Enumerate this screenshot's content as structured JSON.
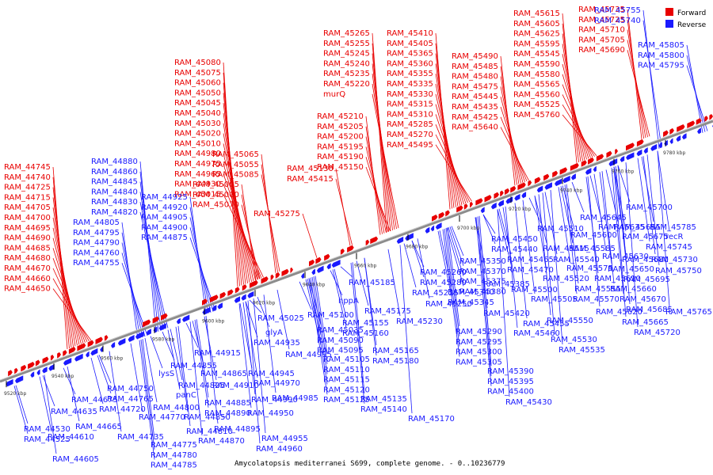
{
  "title": "Amycolatopsis mediterranei S699, complete genome. - 0..10236779",
  "colors": {
    "forward": "#e80000",
    "reverse": "#1a1aff",
    "backbone": "#8c8c8c"
  },
  "legend": [
    {
      "key": "forward",
      "label": "Forward"
    },
    {
      "key": "reverse",
      "label": "Reverse"
    }
  ],
  "ticks": [
    "9520 kbp",
    "9540 kbp",
    "9560 kbp",
    "9580 kbp",
    "9600 kbp",
    "9620 kbp",
    "9640 kbp",
    "9660 kbp",
    "9680 kbp",
    "9700 kbp",
    "9720 kbp",
    "9740 kbp",
    "9760 kbp",
    "9780 kbp"
  ],
  "forward_labels": [
    "RAM_44745",
    "RAM_44740",
    "RAM_44725",
    "RAM_44715",
    "RAM_44705",
    "RAM_44700",
    "RAM_44695",
    "RAM_44690",
    "RAM_44685",
    "RAM_44680",
    "RAM_44670",
    "RAM_44660",
    "RAM_44650",
    "RAM_45080",
    "RAM_45075",
    "RAM_45060",
    "RAM_45050",
    "RAM_45045",
    "RAM_45040",
    "RAM_45030",
    "RAM_45020",
    "RAM_45010",
    "RAM_44980",
    "RAM_44975",
    "RAM_44965",
    "RAM_44930",
    "RAM_45015",
    "RAM_45005",
    "RAM_45000",
    "RAM_45070",
    "RAM_45065",
    "RAM_45055",
    "RAM_45085",
    "RAM_45275",
    "RAM_45265",
    "RAM_45255",
    "RAM_45245",
    "RAM_45240",
    "RAM_45235",
    "RAM_45220",
    "murQ",
    "RAM_45210",
    "RAM_45205",
    "RAM_45200",
    "RAM_45195",
    "RAM_45190",
    "RAM_45150",
    "RAM_45130",
    "RAM_45415",
    "RAM_45410",
    "RAM_45405",
    "RAM_45365",
    "RAM_45360",
    "RAM_45355",
    "RAM_45335",
    "RAM_45330",
    "RAM_45315",
    "RAM_45310",
    "RAM_45285",
    "RAM_45270",
    "RAM_45495",
    "RAM_45490",
    "RAM_45485",
    "RAM_45480",
    "RAM_45475",
    "RAM_45445",
    "RAM_45435",
    "RAM_45425",
    "RAM_45640",
    "RAM_45615",
    "RAM_45605",
    "RAM_45625",
    "RAM_45595",
    "RAM_45545",
    "RAM_45590",
    "RAM_45580",
    "RAM_45565",
    "RAM_45560",
    "RAM_45525",
    "RAM_45760",
    "RAM_45735",
    "RAM_45725",
    "RAM_45710",
    "RAM_45705",
    "RAM_45690"
  ],
  "reverse_labels_top": [
    "RAM_44880",
    "RAM_44860",
    "RAM_44845",
    "RAM_44840",
    "RAM_44830",
    "RAM_44820",
    "RAM_44805",
    "RAM_44795",
    "RAM_44790",
    "RAM_44760",
    "RAM_44755",
    "RAM_44925",
    "RAM_44920",
    "RAM_44905",
    "RAM_44900",
    "RAM_44875",
    "RAM_45755",
    "RAM_45740",
    "RAM_45805",
    "RAM_45800",
    "RAM_45795"
  ],
  "reverse_labels_bottom": [
    "RAM_44530",
    "RAM_44525",
    "RAM_44605",
    "RAM_44610",
    "RAM_44635",
    "RAM_44665",
    "RAM_44675",
    "RAM_44720",
    "RAM_44735",
    "RAM_44750",
    "RAM_44765",
    "RAM_44770",
    "RAM_44775",
    "RAM_44780",
    "RAM_44785",
    "RAM_44800",
    "RAM_44810",
    "RAM_44825",
    "panC",
    "lysS",
    "RAM_44855",
    "RAM_44850",
    "RAM_44865",
    "RAM_44870",
    "RAM_44885",
    "RAM_44890",
    "RAM_44895",
    "RAM_44910",
    "RAM_44915",
    "RAM_44935",
    "RAM_44945",
    "RAM_44950",
    "RAM_44955",
    "RAM_44960",
    "RAM_44970",
    "RAM_44985",
    "RAM_44990",
    "glyA",
    "RAM_44995",
    "RAM_45025",
    "RAM_45035",
    "RAM_45090",
    "RAM_45095",
    "RAM_45100",
    "RAM_45105",
    "RAM_45110",
    "RAM_45115",
    "RAM_45120",
    "RAM_45125",
    "RAM_45135",
    "RAM_45140",
    "RAM_45155",
    "RAM_45160",
    "RAM_45165",
    "RAM_45170",
    "RAM_45175",
    "RAM_45180",
    "hppA",
    "RAM_45185",
    "RAM_45225",
    "RAM_45230",
    "RAM_45250",
    "RAM_45260",
    "RAM_45280",
    "RAM_45290",
    "RAM_45295",
    "RAM_45300",
    "RAM_45305",
    "RAM_45340",
    "RAM_45345",
    "RAM_45350",
    "RAM_45370",
    "RAM_45375",
    "RAM_45380",
    "RAM_45385",
    "RAM_45390",
    "RAM_45395",
    "RAM_45400",
    "RAM_45420",
    "RAM_45430",
    "RAM_45440",
    "RAM_45450",
    "RAM_45455",
    "RAM_45460",
    "RAM_45465",
    "RAM_45470",
    "RAM_45500",
    "RAM_45505",
    "RAM_45510",
    "RAM_45515",
    "RAM_45520",
    "RAM_45530",
    "RAM_45535",
    "RAM_45540",
    "RAM_45550",
    "RAM_45555",
    "RAM_45570",
    "RAM_45575",
    "RAM_45585",
    "RAM_45600",
    "RAM_45610",
    "RAM_45620",
    "RAM_45630",
    "RAM_45635",
    "RAM_45645",
    "RAM_45650",
    "RAM_45655",
    "RAM_45660",
    "RAM_45665",
    "RAM_45670",
    "RAM_45675",
    "RAM_45680",
    "RAM_45685",
    "RAM_45695",
    "RAM_45700",
    "RAM_45720",
    "RAM_45730",
    "RAM_45745",
    "RAM_45750",
    "RAM_45765",
    "RAM_45785",
    "recR"
  ]
}
